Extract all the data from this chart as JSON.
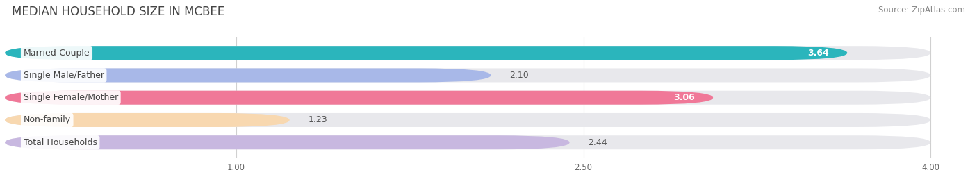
{
  "title": "MEDIAN HOUSEHOLD SIZE IN MCBEE",
  "source": "Source: ZipAtlas.com",
  "categories": [
    "Married-Couple",
    "Single Male/Father",
    "Single Female/Mother",
    "Non-family",
    "Total Households"
  ],
  "values": [
    3.64,
    2.1,
    3.06,
    1.23,
    2.44
  ],
  "bar_colors": [
    "#2bb5bc",
    "#a8b8e8",
    "#f07898",
    "#f8d8b0",
    "#c8b8e0"
  ],
  "value_colors_inside": [
    true,
    false,
    true,
    false,
    false
  ],
  "bar_bg_color": "#e8e8ec",
  "xlim": [
    0,
    4.15
  ],
  "xmin": 0,
  "xmax": 4.0,
  "xticks": [
    1.0,
    2.5,
    4.0
  ],
  "title_fontsize": 12,
  "source_fontsize": 8.5,
  "label_fontsize": 9,
  "value_fontsize": 9,
  "bg_color": "#ffffff",
  "bar_height": 0.62,
  "rounding": 0.31
}
